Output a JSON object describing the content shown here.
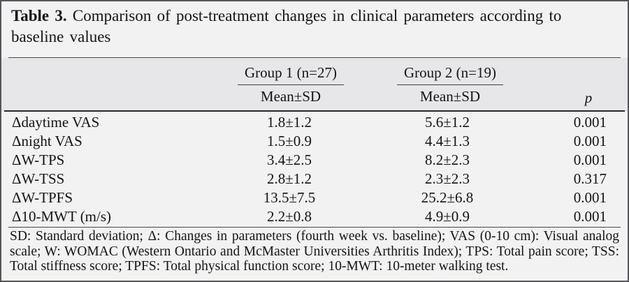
{
  "table": {
    "title_bold": "Table 3.",
    "title_rest": " Comparison of post-treatment changes in clinical parameters according to baseline values",
    "col_groups": [
      {
        "label": "Group 1 (n=27)",
        "sub": "Mean±SD"
      },
      {
        "label": "Group 2 (n=19)",
        "sub": "Mean±SD"
      }
    ],
    "p_header": "p",
    "rows": [
      {
        "label": "Δdaytime VAS",
        "g1": "1.8±1.2",
        "g2": "5.6±1.2",
        "p": "0.001"
      },
      {
        "label": "Δnight VAS",
        "g1": "1.5±0.9",
        "g2": "4.4±1.3",
        "p": "0.001"
      },
      {
        "label": "ΔW-TPS",
        "g1": "3.4±2.5",
        "g2": "8.2±2.3",
        "p": "0.001"
      },
      {
        "label": "ΔW-TSS",
        "g1": "2.8±1.2",
        "g2": "2.3±2.3",
        "p": "0.317"
      },
      {
        "label": "ΔW-TPFS",
        "g1": "13.5±7.5",
        "g2": "25.2±6.8",
        "p": "0.001"
      },
      {
        "label": "Δ10-MWT (m/s)",
        "g1": "2.2±0.8",
        "g2": "4.9±0.9",
        "p": "0.001"
      }
    ],
    "footnote": "SD: Standard deviation; Δ: Changes in parameters (fourth week vs. baseline); VAS (0-10 cm): Visual analog scale; W: WOMAC (Western Ontario and McMaster Universities Arthritis Index); TPS: Total pain score; TSS: Total stiffness score; TPFS: Total physical function score; 10-MWT: 10-meter walking test."
  },
  "colors": {
    "page_background": "#f2f2f3",
    "header_band": "#e7e7e9",
    "outer_border": "#55555a",
    "thin_rule": "#47474a",
    "heavy_rule": "#28282b",
    "text": "#141414"
  }
}
